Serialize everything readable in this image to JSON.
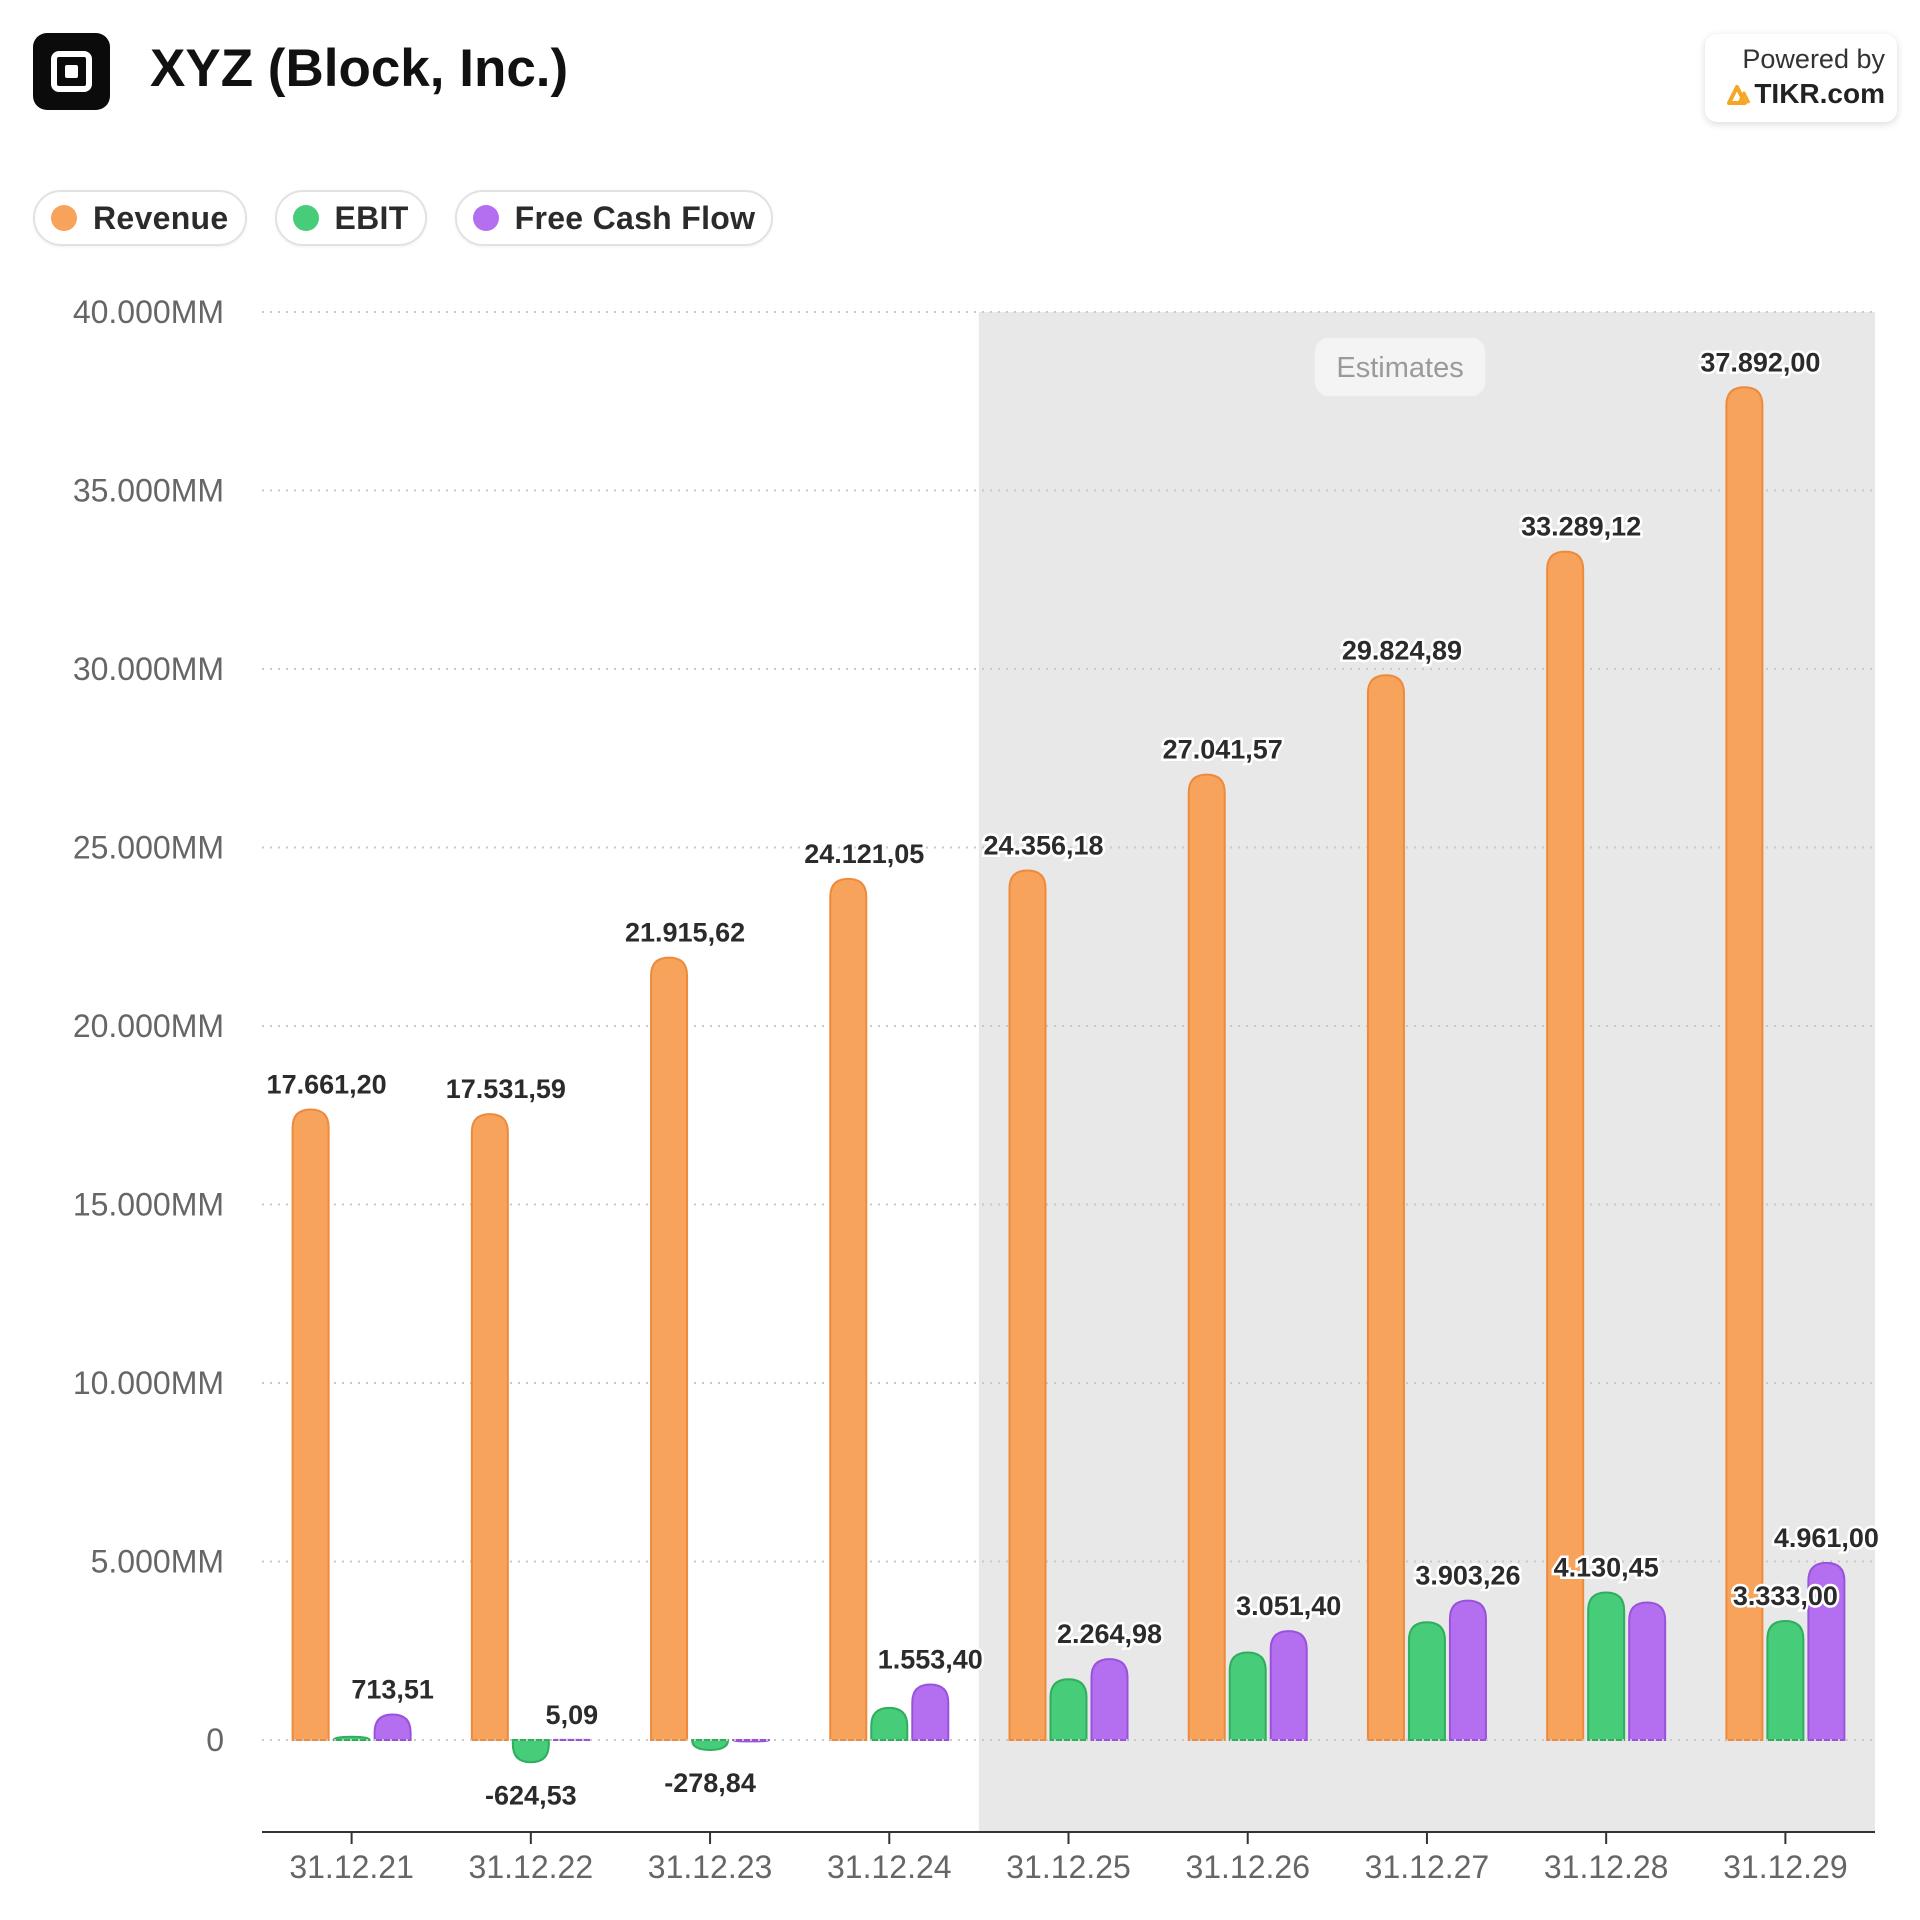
{
  "header": {
    "title": "XYZ (Block, Inc.)",
    "logo_icon": "block-square-logo-icon",
    "powered_by": "Powered by",
    "brand": "TIKR.com",
    "brand_icon": "tikr-logo-icon",
    "brand_color": "#f5a623"
  },
  "legend": [
    {
      "label": "Revenue",
      "color": "#f7a35c"
    },
    {
      "label": "EBIT",
      "color": "#47cc7a"
    },
    {
      "label": "Free Cash Flow",
      "color": "#b36ff0"
    }
  ],
  "estimates_label": "Estimates",
  "chart_data": {
    "type": "bar",
    "title": "XYZ (Block, Inc.)",
    "categories": [
      "31.12.21",
      "31.12.22",
      "31.12.23",
      "31.12.24",
      "31.12.25",
      "31.12.26",
      "31.12.27",
      "31.12.28",
      "31.12.29"
    ],
    "estimates_from_index": 4,
    "ylim": [
      -2500,
      40000
    ],
    "yticks": [
      0,
      5000,
      10000,
      15000,
      20000,
      25000,
      30000,
      35000,
      40000
    ],
    "ytick_labels": [
      "0",
      "5.000MM",
      "10.000MM",
      "15.000MM",
      "20.000MM",
      "25.000MM",
      "30.000MM",
      "35.000MM",
      "40.000MM"
    ],
    "series": [
      {
        "name": "Revenue",
        "color": "#f7a35c",
        "stroke": "#ee8a3c",
        "values": [
          17661.2,
          17531.59,
          21915.62,
          24121.05,
          24356.18,
          27041.57,
          29824.89,
          33289.12,
          37892.0
        ],
        "labels": [
          "17.661,20",
          "17.531,59",
          "21.915,62",
          "24.121,05",
          "24.356,18",
          "27.041,57",
          "29.824,89",
          "33.289,12",
          "37.892,00"
        ]
      },
      {
        "name": "EBIT",
        "color": "#47cc7a",
        "stroke": "#2fae5e",
        "values": [
          90,
          -624.53,
          -278.84,
          900,
          1700,
          2450,
          3300,
          4130.45,
          3333.0
        ],
        "labels": [
          "",
          "-624,53",
          "-278,84",
          "",
          "",
          "",
          "",
          "4.130,45",
          "3.333,00"
        ]
      },
      {
        "name": "Free Cash Flow",
        "color": "#b36ff0",
        "stroke": "#9a52dc",
        "values": [
          713.51,
          5.09,
          -40,
          1553.4,
          2264.98,
          3051.4,
          3903.26,
          3850,
          4961.0
        ],
        "labels": [
          "713,51",
          "5,09",
          "",
          "1.553,40",
          "2.264,98",
          "3.051,40",
          "3.903,26",
          "",
          "4.961,00"
        ]
      }
    ]
  }
}
